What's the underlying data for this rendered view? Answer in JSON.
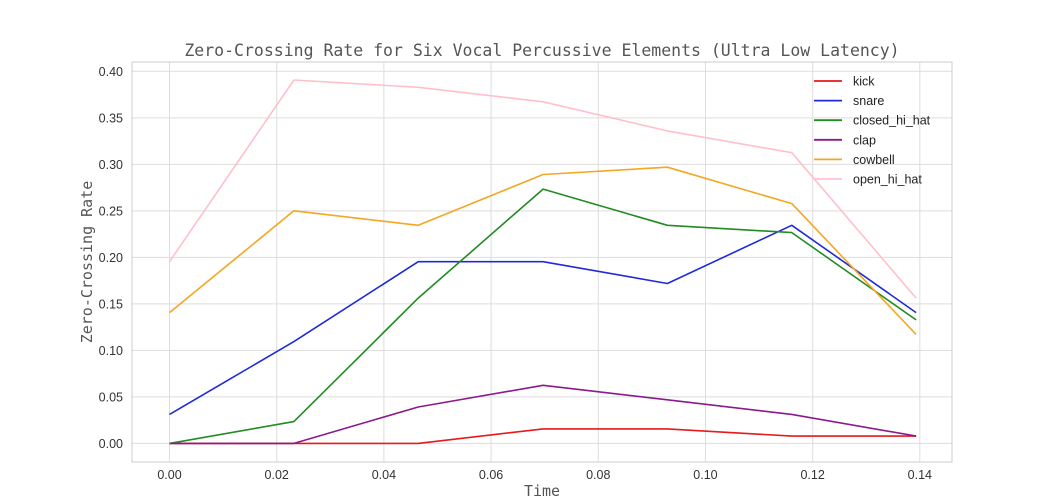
{
  "chart_data": {
    "type": "line",
    "title": "Zero-Crossing Rate for Six Vocal Percussive Elements (Ultra Low Latency)",
    "xlabel": "Time",
    "ylabel": "Zero-Crossing Rate",
    "xlim": [
      -0.007,
      0.146
    ],
    "ylim": [
      -0.02,
      0.41
    ],
    "xticks": [
      0.0,
      0.02,
      0.04,
      0.06,
      0.08,
      0.1,
      0.12,
      0.14
    ],
    "xtick_labels": [
      "0.00",
      "0.02",
      "0.04",
      "0.06",
      "0.08",
      "0.10",
      "0.12",
      "0.14"
    ],
    "yticks": [
      0.0,
      0.05,
      0.1,
      0.15,
      0.2,
      0.25,
      0.3,
      0.35,
      0.4
    ],
    "ytick_labels": [
      "0.00",
      "0.05",
      "0.10",
      "0.15",
      "0.20",
      "0.25",
      "0.30",
      "0.35",
      "0.40"
    ],
    "grid": true,
    "legend_position": "top-right",
    "x": [
      0.0,
      0.0232,
      0.0464,
      0.0697,
      0.0929,
      0.1161,
      0.1393
    ],
    "series": [
      {
        "name": "kick",
        "color": "#e41a1c",
        "values": [
          0.0,
          0.0,
          0.0,
          0.0156,
          0.0156,
          0.0078,
          0.0078
        ]
      },
      {
        "name": "snare",
        "color": "#1f2bd6",
        "values": [
          0.0312,
          0.1094,
          0.1953,
          0.1953,
          0.1719,
          0.2344,
          0.1406
        ]
      },
      {
        "name": "closed_hi_hat",
        "color": "#228b22",
        "values": [
          0.0,
          0.0234,
          0.1562,
          0.2734,
          0.2344,
          0.2266,
          0.1328
        ]
      },
      {
        "name": "clap",
        "color": "#8b1a8b",
        "values": [
          0.0,
          0.0,
          0.0391,
          0.0625,
          0.0469,
          0.0312,
          0.0078
        ]
      },
      {
        "name": "cowbell",
        "color": "#f5a623",
        "values": [
          0.1406,
          0.25,
          0.2344,
          0.2891,
          0.2969,
          0.2578,
          0.1172
        ]
      },
      {
        "name": "open_hi_hat",
        "color": "#ffc0cb",
        "values": [
          0.1953,
          0.3906,
          0.3828,
          0.3672,
          0.3359,
          0.3125,
          0.1562
        ]
      }
    ]
  }
}
